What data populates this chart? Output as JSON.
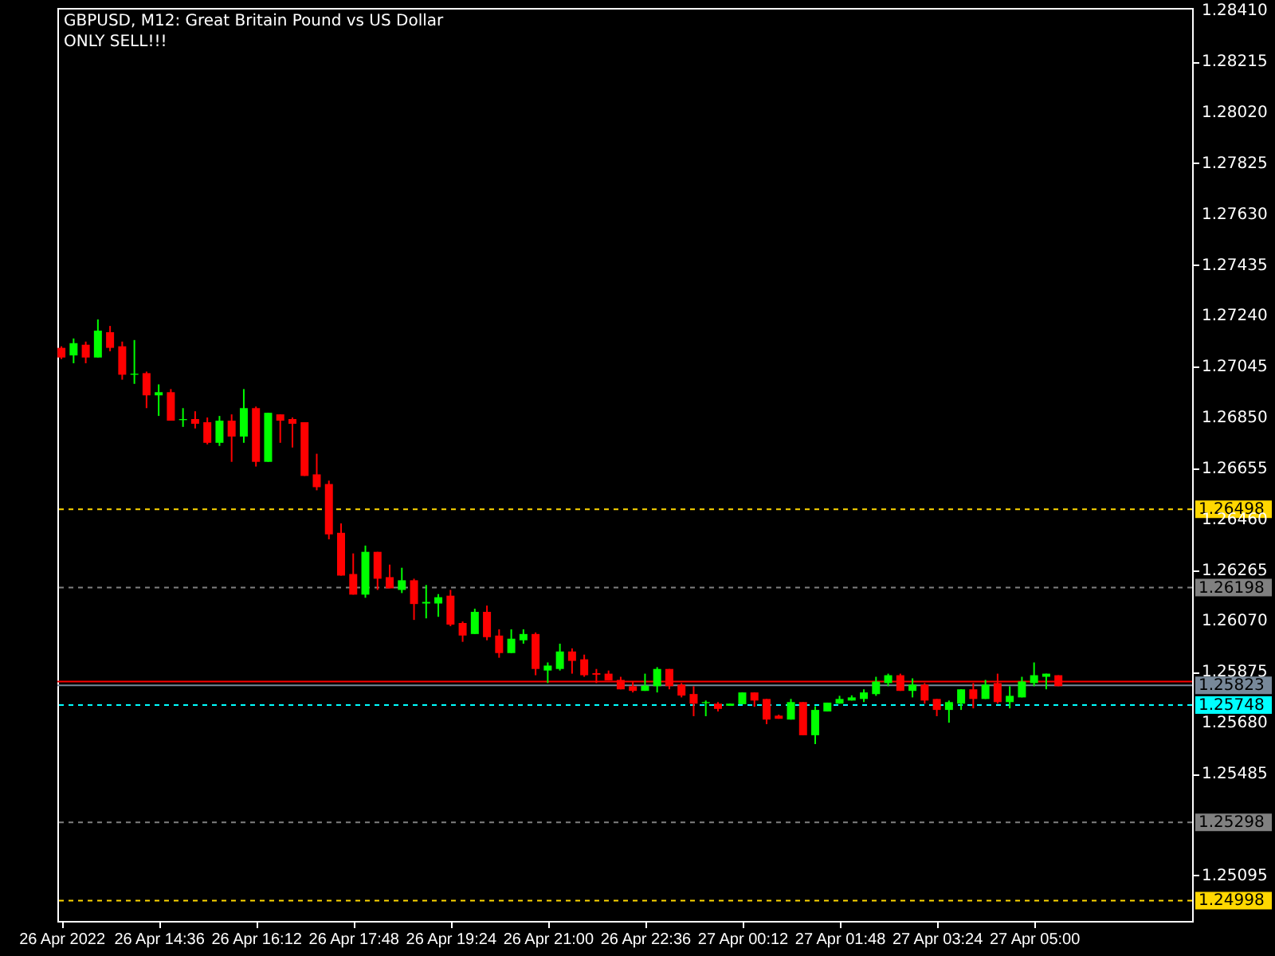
{
  "chart_data": {
    "type": "candlestick",
    "title": "GBPUSD, M12:  Great Britain Pound vs US Dollar",
    "annotations": [
      "ONLY SELL!!!"
    ],
    "x": [
      "2022-04-26T13:00",
      "2022-04-26T13:12",
      "2022-04-26T13:24",
      "2022-04-26T13:36",
      "2022-04-26T13:48",
      "2022-04-26T14:00",
      "2022-04-26T14:12",
      "2022-04-26T14:24",
      "2022-04-26T14:36",
      "2022-04-26T14:48",
      "2022-04-26T15:00",
      "2022-04-26T15:12",
      "2022-04-26T15:24",
      "2022-04-26T15:36",
      "2022-04-26T15:48",
      "2022-04-26T16:00",
      "2022-04-26T16:12",
      "2022-04-26T16:24",
      "2022-04-26T16:36",
      "2022-04-26T16:48",
      "2022-04-26T17:00",
      "2022-04-26T17:12",
      "2022-04-26T17:24",
      "2022-04-26T17:36",
      "2022-04-26T17:48",
      "2022-04-26T18:00",
      "2022-04-26T18:12",
      "2022-04-26T18:24",
      "2022-04-26T18:36",
      "2022-04-26T18:48",
      "2022-04-26T19:00",
      "2022-04-26T19:12",
      "2022-04-26T19:24",
      "2022-04-26T19:36",
      "2022-04-26T19:48",
      "2022-04-26T20:00",
      "2022-04-26T20:12",
      "2022-04-26T20:24",
      "2022-04-26T20:36",
      "2022-04-26T20:48",
      "2022-04-26T21:00",
      "2022-04-26T21:12",
      "2022-04-26T21:24",
      "2022-04-26T21:36",
      "2022-04-26T21:48",
      "2022-04-26T22:00",
      "2022-04-26T22:12",
      "2022-04-26T22:24",
      "2022-04-26T22:36",
      "2022-04-26T22:48",
      "2022-04-26T23:00",
      "2022-04-26T23:12",
      "2022-04-26T23:24",
      "2022-04-26T23:36",
      "2022-04-26T23:48",
      "2022-04-27T00:00",
      "2022-04-27T00:12",
      "2022-04-27T00:24",
      "2022-04-27T00:36",
      "2022-04-27T00:48",
      "2022-04-27T01:00",
      "2022-04-27T01:12",
      "2022-04-27T01:24",
      "2022-04-27T01:36",
      "2022-04-27T01:48",
      "2022-04-27T02:00",
      "2022-04-27T02:12",
      "2022-04-27T02:24",
      "2022-04-27T02:36",
      "2022-04-27T02:48",
      "2022-04-27T03:00",
      "2022-04-27T03:12",
      "2022-04-27T03:24",
      "2022-04-27T03:36",
      "2022-04-27T03:48",
      "2022-04-27T04:00",
      "2022-04-27T04:12",
      "2022-04-27T04:24",
      "2022-04-27T04:36",
      "2022-04-27T04:48",
      "2022-04-27T05:00",
      "2022-04-27T05:12",
      "2022-04-27T05:24"
    ],
    "ohlc": [
      [
        1.27117,
        1.27123,
        1.27074,
        1.2708
      ],
      [
        1.27088,
        1.27153,
        1.27058,
        1.27135
      ],
      [
        1.27129,
        1.27141,
        1.27058,
        1.2708
      ],
      [
        1.2708,
        1.27226,
        1.2708,
        1.27183
      ],
      [
        1.27177,
        1.27201,
        1.27104,
        1.27117
      ],
      [
        1.27123,
        1.27141,
        1.26995,
        1.27014
      ],
      [
        1.27014,
        1.27147,
        1.26979,
        1.27018
      ],
      [
        1.2702,
        1.27026,
        1.26886,
        1.26935
      ],
      [
        1.26935,
        1.26977,
        1.26856,
        1.26947
      ],
      [
        1.26947,
        1.26959,
        1.26838,
        1.26838
      ],
      [
        1.2684,
        1.26886,
        1.26814,
        1.26844
      ],
      [
        1.26844,
        1.26874,
        1.26808,
        1.26826
      ],
      [
        1.26832,
        1.2685,
        1.26747,
        1.26753
      ],
      [
        1.26753,
        1.26856,
        1.26741,
        1.26838
      ],
      [
        1.26838,
        1.26862,
        1.2668,
        1.26777
      ],
      [
        1.26777,
        1.26959,
        1.26753,
        1.26886
      ],
      [
        1.26886,
        1.26892,
        1.26662,
        1.2668
      ],
      [
        1.2668,
        1.26868,
        1.2668,
        1.26868
      ],
      [
        1.26862,
        1.26862,
        1.26753,
        1.26838
      ],
      [
        1.26844,
        1.2685,
        1.26735,
        1.26826
      ],
      [
        1.26832,
        1.26832,
        1.26626,
        1.26626
      ],
      [
        1.26632,
        1.26711,
        1.26571,
        1.26583
      ],
      [
        1.26595,
        1.26608,
        1.26383,
        1.26402
      ],
      [
        1.26408,
        1.26444,
        1.26244,
        1.26244
      ],
      [
        1.2625,
        1.26329,
        1.26171,
        1.26171
      ],
      [
        1.26171,
        1.26359,
        1.26159,
        1.26335
      ],
      [
        1.26335,
        1.26335,
        1.26189,
        1.26232
      ],
      [
        1.26238,
        1.26286,
        1.26195,
        1.26195
      ],
      [
        1.26189,
        1.26274,
        1.26177,
        1.26226
      ],
      [
        1.26226,
        1.26232,
        1.26074,
        1.26135
      ],
      [
        1.26137,
        1.26208,
        1.2608,
        1.26143
      ],
      [
        1.26137,
        1.26173,
        1.26086,
        1.26161
      ],
      [
        1.26167,
        1.26189,
        1.2605,
        1.26056
      ],
      [
        1.26062,
        1.26068,
        1.2599,
        1.26014
      ],
      [
        1.2602,
        1.26117,
        1.2602,
        1.26105
      ],
      [
        1.26105,
        1.26129,
        1.25996,
        1.26008
      ],
      [
        1.26014,
        1.26038,
        1.25929,
        1.25947
      ],
      [
        1.25947,
        1.26038,
        1.25947,
        1.26002
      ],
      [
        1.25996,
        1.26038,
        1.25983,
        1.2602
      ],
      [
        1.2602,
        1.26026,
        1.25862,
        1.25886
      ],
      [
        1.2588,
        1.25911,
        1.25832,
        1.25899
      ],
      [
        1.25886,
        1.25983,
        1.2588,
        1.25953
      ],
      [
        1.25953,
        1.25965,
        1.25868,
        1.25917
      ],
      [
        1.25923,
        1.25941,
        1.25856,
        1.25862
      ],
      [
        1.2587,
        1.25886,
        1.25832,
        1.25864
      ],
      [
        1.25868,
        1.2588,
        1.25842,
        1.25842
      ],
      [
        1.25844,
        1.25856,
        1.25808,
        1.25808
      ],
      [
        1.2582,
        1.25838,
        1.25796,
        1.25802
      ],
      [
        1.25802,
        1.25868,
        1.25802,
        1.25822
      ],
      [
        1.2582,
        1.25893,
        1.25796,
        1.25886
      ],
      [
        1.25886,
        1.25886,
        1.25808,
        1.2582
      ],
      [
        1.25826,
        1.25832,
        1.25777,
        1.25784
      ],
      [
        1.2579,
        1.2582,
        1.25705,
        1.25753
      ],
      [
        1.25755,
        1.25765,
        1.25705,
        1.25759
      ],
      [
        1.25753,
        1.25759,
        1.25723,
        1.25733
      ],
      [
        1.25745,
        1.25753,
        1.25745,
        1.25753
      ],
      [
        1.25751,
        1.25796,
        1.25751,
        1.25796
      ],
      [
        1.25796,
        1.25796,
        1.25741,
        1.25765
      ],
      [
        1.25771,
        1.25771,
        1.25674,
        1.25692
      ],
      [
        1.25707,
        1.25711,
        1.25695,
        1.25695
      ],
      [
        1.25692,
        1.25771,
        1.25692,
        1.25759
      ],
      [
        1.25759,
        1.25759,
        1.25632,
        1.25632
      ],
      [
        1.25632,
        1.25743,
        1.25598,
        1.25729
      ],
      [
        1.25723,
        1.25757,
        1.25723,
        1.25757
      ],
      [
        1.25753,
        1.25783,
        1.25753,
        1.25771
      ],
      [
        1.25765,
        1.25785,
        1.25765,
        1.25777
      ],
      [
        1.25771,
        1.25808,
        1.25759,
        1.25796
      ],
      [
        1.2579,
        1.25856,
        1.25783,
        1.25838
      ],
      [
        1.25832,
        1.25868,
        1.2582,
        1.25862
      ],
      [
        1.25862,
        1.25868,
        1.25802,
        1.25802
      ],
      [
        1.25802,
        1.2585,
        1.25777,
        1.25826
      ],
      [
        1.25826,
        1.25832,
        1.25753,
        1.25765
      ],
      [
        1.25771,
        1.25771,
        1.25705,
        1.25729
      ],
      [
        1.25729,
        1.25765,
        1.2568,
        1.25759
      ],
      [
        1.25753,
        1.25808,
        1.25729,
        1.25808
      ],
      [
        1.25808,
        1.25832,
        1.25735,
        1.25771
      ],
      [
        1.25771,
        1.25844,
        1.25771,
        1.25826
      ],
      [
        1.25832,
        1.25868,
        1.25753,
        1.25759
      ],
      [
        1.25759,
        1.2582,
        1.25735,
        1.25783
      ],
      [
        1.25777,
        1.25856,
        1.25777,
        1.25838
      ],
      [
        1.25832,
        1.25911,
        1.2582,
        1.25862
      ],
      [
        1.25856,
        1.25868,
        1.25808,
        1.25868
      ],
      [
        1.25862,
        1.25862,
        1.2582,
        1.2582
      ]
    ],
    "colors": [
      "#ff0000",
      "#00ff00",
      "#ff0000",
      "#00ff00",
      "#ff0000",
      "#ff0000",
      "#00ff00",
      "#ff0000",
      "#00ff00",
      "#ff0000",
      "#00ff00",
      "#ff0000",
      "#ff0000",
      "#00ff00",
      "#ff0000",
      "#00ff00",
      "#ff0000",
      "#00ff00",
      "#ff0000",
      "#ff0000",
      "#ff0000",
      "#ff0000",
      "#ff0000",
      "#ff0000",
      "#ff0000",
      "#00ff00",
      "#ff0000",
      "#ff0000",
      "#00ff00",
      "#ff0000",
      "#00ff00",
      "#00ff00",
      "#ff0000",
      "#ff0000",
      "#00ff00",
      "#ff0000",
      "#ff0000",
      "#00ff00",
      "#00ff00",
      "#ff0000",
      "#00ff00",
      "#00ff00",
      "#ff0000",
      "#ff0000",
      "#ff0000",
      "#ff0000",
      "#ff0000",
      "#ff0000",
      "#00ff00",
      "#00ff00",
      "#ff0000",
      "#ff0000",
      "#ff0000",
      "#00ff00",
      "#ff0000",
      "#00ff00",
      "#00ff00",
      "#ff0000",
      "#ff0000",
      "#ff0000",
      "#00ff00",
      "#ff0000",
      "#00ff00",
      "#00ff00",
      "#00ff00",
      "#00ff00",
      "#00ff00",
      "#00ff00",
      "#00ff00",
      "#ff0000",
      "#00ff00",
      "#ff0000",
      "#ff0000",
      "#00ff00",
      "#00ff00",
      "#ff0000",
      "#00ff00",
      "#ff0000",
      "#00ff00",
      "#00ff00",
      "#00ff00",
      "#00ff00",
      "#ff0000"
    ],
    "xlim": [
      "2022-04-26T12:56",
      "2022-04-27T07:36"
    ],
    "xticks": [
      {
        "value": "2022-04-26T13:00",
        "label": "26 Apr 2022"
      },
      {
        "value": "2022-04-26T14:36",
        "label": "26 Apr 14:36"
      },
      {
        "value": "2022-04-26T16:12",
        "label": "26 Apr 16:12"
      },
      {
        "value": "2022-04-26T17:48",
        "label": "26 Apr 17:48"
      },
      {
        "value": "2022-04-26T19:24",
        "label": "26 Apr 19:24"
      },
      {
        "value": "2022-04-26T21:00",
        "label": "26 Apr 21:00"
      },
      {
        "value": "2022-04-26T22:36",
        "label": "26 Apr 22:36"
      },
      {
        "value": "2022-04-27T00:12",
        "label": "27 Apr 00:12"
      },
      {
        "value": "2022-04-27T01:48",
        "label": "27 Apr 01:48"
      },
      {
        "value": "2022-04-27T03:24",
        "label": "27 Apr 03:24"
      },
      {
        "value": "2022-04-27T05:00",
        "label": "27 Apr 05:00"
      }
    ],
    "ylim": [
      1.2492,
      1.2842
    ],
    "yticks": [
      {
        "value": 1.2841,
        "label": "1.28410"
      },
      {
        "value": 1.28215,
        "label": "1.28215"
      },
      {
        "value": 1.2802,
        "label": "1.28020"
      },
      {
        "value": 1.27825,
        "label": "1.27825"
      },
      {
        "value": 1.2763,
        "label": "1.27630"
      },
      {
        "value": 1.27435,
        "label": "1.27435"
      },
      {
        "value": 1.2724,
        "label": "1.27240"
      },
      {
        "value": 1.27045,
        "label": "1.27045"
      },
      {
        "value": 1.2685,
        "label": "1.26850"
      },
      {
        "value": 1.26655,
        "label": "1.26655"
      },
      {
        "value": 1.2646,
        "label": "1.26460"
      },
      {
        "value": 1.26265,
        "label": "1.26265"
      },
      {
        "value": 1.2607,
        "label": "1.26070"
      },
      {
        "value": 1.25875,
        "label": "1.25875"
      },
      {
        "value": 1.2568,
        "label": "1.25680"
      },
      {
        "value": 1.25485,
        "label": "1.25485"
      },
      {
        "value": 1.2529,
        "label": null
      },
      {
        "value": 1.25095,
        "label": "1.25095"
      }
    ],
    "ref_lines": [
      {
        "axis": "y",
        "value": 1.26498,
        "label": "1.26498",
        "color": "#ffd700",
        "line_style": "dashed"
      },
      {
        "axis": "y",
        "value": 1.26198,
        "label": "1.26198",
        "color": "#808080",
        "line_style": "dashed"
      },
      {
        "axis": "y",
        "value": 1.25838,
        "label": null,
        "color": "#ff0000",
        "line_style": "solid"
      },
      {
        "axis": "y",
        "value": 1.25823,
        "label": "1.25823",
        "color": "#778899",
        "line_style": "solid"
      },
      {
        "axis": "y",
        "value": 1.25748,
        "label": "1.25748",
        "color": "#00ffff",
        "line_style": "dashed"
      },
      {
        "axis": "y",
        "value": 1.25298,
        "label": "1.25298",
        "color": "#808080",
        "line_style": "dashed"
      },
      {
        "axis": "y",
        "value": 1.24998,
        "label": "1.24998",
        "color": "#ffd700",
        "line_style": "dashed"
      }
    ],
    "grid": false
  }
}
